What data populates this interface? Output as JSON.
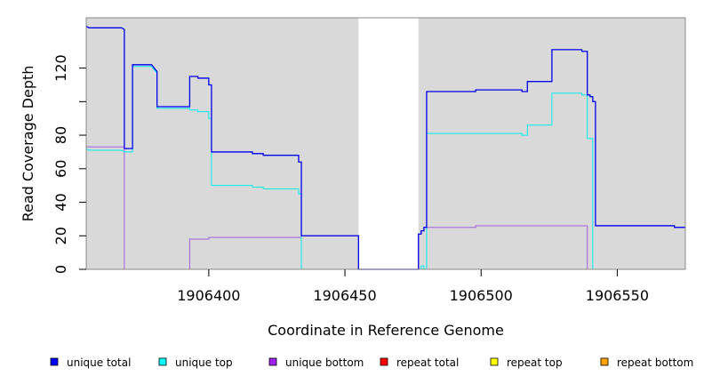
{
  "chart_data": {
    "type": "line",
    "title": "",
    "xlabel": "Coordinate in Reference Genome",
    "ylabel": "Read Coverage Depth",
    "xlim": [
      1906355,
      1906575
    ],
    "ylim": [
      0,
      150
    ],
    "x_ticks": [
      1906400,
      1906450,
      1906500,
      1906550
    ],
    "x_tick_labels": [
      "1906400",
      "1906450",
      "1906500",
      "1906550"
    ],
    "y_ticks": [
      0,
      20,
      40,
      60,
      80,
      100,
      120
    ],
    "y_tick_labels": [
      "0",
      "20",
      "40",
      "60",
      "80",
      "",
      "120"
    ],
    "shaded_regions": [
      [
        1906355,
        1906455
      ],
      [
        1906477,
        1906575
      ]
    ],
    "shade_color": "#d9d9d9",
    "legend_position": "bottom",
    "series": [
      {
        "name": "unique total",
        "color": "#0000ee",
        "legend_color": "#0000ff",
        "points": [
          [
            1906355,
            145
          ],
          [
            1906356,
            144
          ],
          [
            1906368,
            144
          ],
          [
            1906369,
            143
          ],
          [
            1906369,
            72
          ],
          [
            1906372,
            72
          ],
          [
            1906372,
            122
          ],
          [
            1906379,
            122
          ],
          [
            1906380,
            120
          ],
          [
            1906381,
            118
          ],
          [
            1906381,
            97
          ],
          [
            1906393,
            97
          ],
          [
            1906393,
            115
          ],
          [
            1906396,
            115
          ],
          [
            1906396,
            114
          ],
          [
            1906400,
            114
          ],
          [
            1906400,
            110
          ],
          [
            1906401,
            110
          ],
          [
            1906401,
            70
          ],
          [
            1906416,
            70
          ],
          [
            1906416,
            69
          ],
          [
            1906420,
            69
          ],
          [
            1906420,
            68
          ],
          [
            1906433,
            68
          ],
          [
            1906433,
            64
          ],
          [
            1906434,
            64
          ],
          [
            1906434,
            20
          ],
          [
            1906455,
            20
          ],
          [
            1906455,
            0
          ],
          [
            1906477,
            0
          ],
          [
            1906477,
            21
          ],
          [
            1906478,
            21
          ],
          [
            1906478,
            23
          ],
          [
            1906479,
            23
          ],
          [
            1906479,
            25
          ],
          [
            1906480,
            25
          ],
          [
            1906480,
            106
          ],
          [
            1906498,
            106
          ],
          [
            1906498,
            107
          ],
          [
            1906515,
            107
          ],
          [
            1906515,
            106
          ],
          [
            1906517,
            106
          ],
          [
            1906517,
            112
          ],
          [
            1906526,
            112
          ],
          [
            1906526,
            131
          ],
          [
            1906537,
            131
          ],
          [
            1906537,
            130
          ],
          [
            1906539,
            130
          ],
          [
            1906539,
            104
          ],
          [
            1906540,
            104
          ],
          [
            1906540,
            103
          ],
          [
            1906541,
            103
          ],
          [
            1906541,
            100
          ],
          [
            1906542,
            100
          ],
          [
            1906542,
            26
          ],
          [
            1906571,
            26
          ],
          [
            1906571,
            25
          ],
          [
            1906575,
            25
          ]
        ]
      },
      {
        "name": "unique top",
        "color": "#00eeee",
        "legend_color": "#00ffff",
        "points": [
          [
            1906355,
            72
          ],
          [
            1906356,
            71
          ],
          [
            1906368,
            71
          ],
          [
            1906369,
            70
          ],
          [
            1906372,
            70
          ],
          [
            1906372,
            121
          ],
          [
            1906379,
            121
          ],
          [
            1906380,
            119
          ],
          [
            1906381,
            117
          ],
          [
            1906381,
            96
          ],
          [
            1906393,
            96
          ],
          [
            1906393,
            95
          ],
          [
            1906396,
            95
          ],
          [
            1906396,
            94
          ],
          [
            1906400,
            94
          ],
          [
            1906400,
            90
          ],
          [
            1906401,
            90
          ],
          [
            1906401,
            50
          ],
          [
            1906416,
            50
          ],
          [
            1906416,
            49
          ],
          [
            1906420,
            49
          ],
          [
            1906420,
            48
          ],
          [
            1906433,
            48
          ],
          [
            1906433,
            45
          ],
          [
            1906434,
            45
          ],
          [
            1906434,
            0
          ],
          [
            1906455,
            0
          ],
          [
            1906478,
            0
          ],
          [
            1906478,
            2
          ],
          [
            1906479,
            2
          ],
          [
            1906479,
            0
          ],
          [
            1906480,
            0
          ],
          [
            1906480,
            81
          ],
          [
            1906498,
            81
          ],
          [
            1906515,
            81
          ],
          [
            1906515,
            80
          ],
          [
            1906517,
            80
          ],
          [
            1906517,
            86
          ],
          [
            1906526,
            86
          ],
          [
            1906526,
            105
          ],
          [
            1906537,
            105
          ],
          [
            1906537,
            104
          ],
          [
            1906539,
            104
          ],
          [
            1906539,
            78
          ],
          [
            1906541,
            78
          ],
          [
            1906541,
            0
          ],
          [
            1906575,
            0
          ]
        ]
      },
      {
        "name": "unique bottom",
        "color": "#9f5fdf",
        "legend_color": "#a020f0",
        "points": [
          [
            1906355,
            73
          ],
          [
            1906369,
            73
          ],
          [
            1906369,
            0
          ],
          [
            1906393,
            0
          ],
          [
            1906393,
            18
          ],
          [
            1906400,
            18
          ],
          [
            1906400,
            19
          ],
          [
            1906434,
            19
          ],
          [
            1906434,
            20
          ],
          [
            1906455,
            20
          ],
          [
            1906455,
            0
          ],
          [
            1906477,
            0
          ],
          [
            1906477,
            21
          ],
          [
            1906478,
            21
          ],
          [
            1906478,
            23
          ],
          [
            1906479,
            23
          ],
          [
            1906479,
            25
          ],
          [
            1906480,
            25
          ],
          [
            1906498,
            25
          ],
          [
            1906498,
            26
          ],
          [
            1906539,
            26
          ],
          [
            1906539,
            0
          ],
          [
            1906575,
            0
          ]
        ]
      },
      {
        "name": "repeat total",
        "color": "#ff0000",
        "legend_color": "#ff0000",
        "points": [
          [
            1906355,
            0
          ],
          [
            1906575,
            0
          ]
        ]
      },
      {
        "name": "repeat top",
        "color": "#ffff00",
        "legend_color": "#ffff00",
        "points": [
          [
            1906355,
            0
          ],
          [
            1906575,
            0
          ]
        ]
      },
      {
        "name": "repeat bottom",
        "color": "#ffa500",
        "legend_color": "#ffa500",
        "points": [
          [
            1906355,
            0
          ],
          [
            1906575,
            0
          ]
        ]
      }
    ]
  }
}
